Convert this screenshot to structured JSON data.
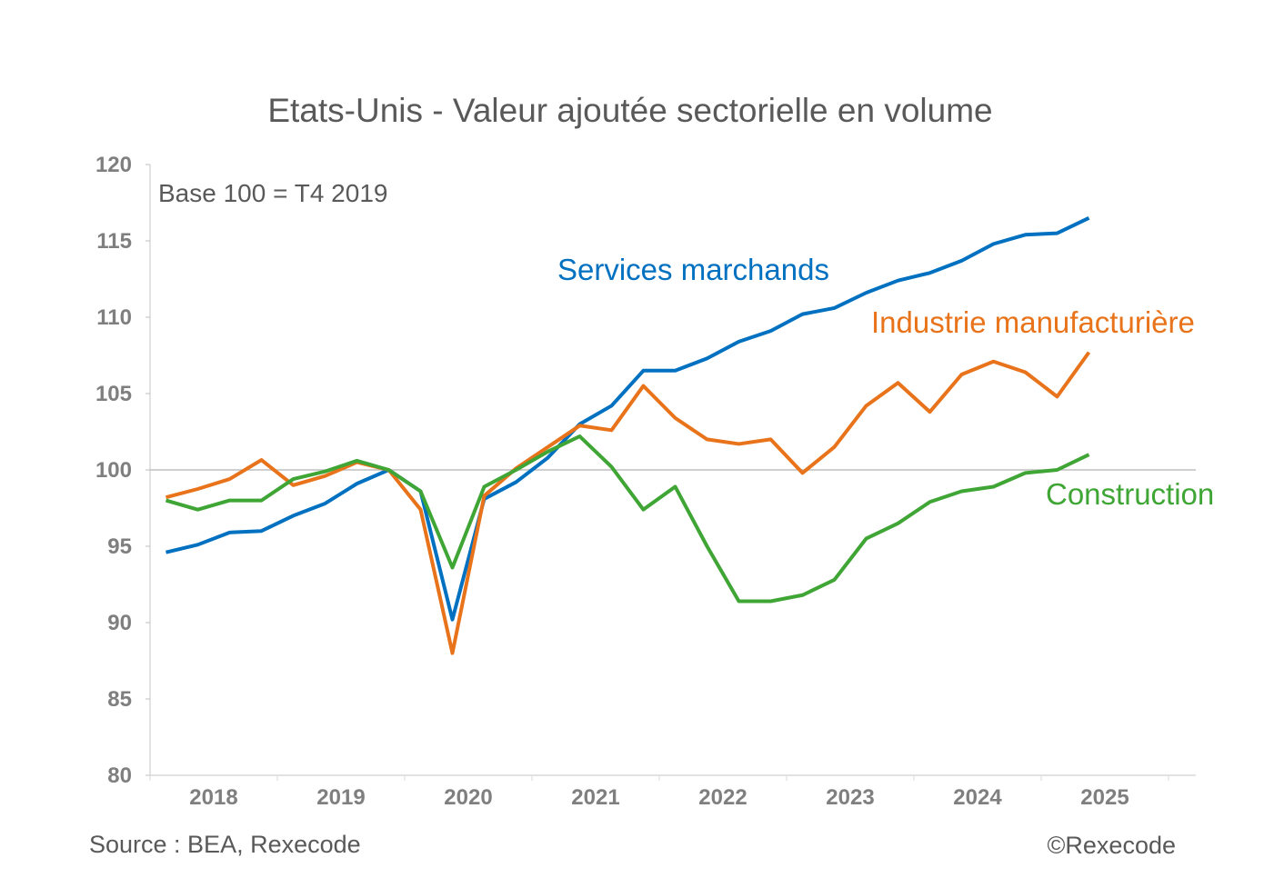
{
  "chart_data": {
    "type": "line",
    "title": "Etats-Unis - Valeur ajoutée sectorielle en volume",
    "note": "Base 100 = T4 2019",
    "source": "Source : BEA, Rexecode",
    "copyright": "©Rexecode",
    "xlabel": "",
    "ylabel": "",
    "ylim": [
      80,
      120
    ],
    "yticks": [
      80,
      85,
      90,
      95,
      100,
      105,
      110,
      115,
      120
    ],
    "xtick_labels": [
      "2018",
      "2019",
      "2020",
      "2021",
      "2022",
      "2023",
      "2024",
      "2025"
    ],
    "x": [
      "T1 2018",
      "T2 2018",
      "T3 2018",
      "T4 2018",
      "T1 2019",
      "T2 2019",
      "T3 2019",
      "T4 2019",
      "T1 2020",
      "T2 2020",
      "T3 2020",
      "T4 2020",
      "T1 2021",
      "T2 2021",
      "T3 2021",
      "T4 2021",
      "T1 2022",
      "T2 2022",
      "T3 2022",
      "T4 2022",
      "T1 2023",
      "T2 2023",
      "T3 2023",
      "T4 2023",
      "T1 2024",
      "T2 2024",
      "T3 2024",
      "T4 2024",
      "T1 2025",
      "T2 2025"
    ],
    "reference_line": 100,
    "grid": false,
    "legend": "inline labels",
    "series": [
      {
        "name": "Services marchands",
        "color": "#0070C0",
        "values": [
          94.6,
          95.1,
          95.9,
          96.0,
          97.0,
          97.8,
          99.1,
          100,
          98.6,
          90.2,
          98.1,
          99.2,
          100.8,
          103.0,
          104.2,
          106.5,
          106.5,
          107.3,
          108.4,
          109.1,
          110.2,
          110.6,
          111.6,
          112.4,
          112.9,
          113.7,
          114.8,
          115.4,
          115.5,
          116.5
        ]
      },
      {
        "name": "Industrie manufacturière",
        "color": "#E8731A",
        "values": [
          98.2,
          98.75,
          99.4,
          100.65,
          99.0,
          99.6,
          100.5,
          100,
          97.4,
          88.0,
          98.3,
          100.1,
          101.5,
          102.9,
          102.6,
          105.5,
          103.4,
          102.0,
          101.7,
          102.0,
          99.8,
          101.5,
          104.2,
          105.7,
          103.8,
          106.25,
          107.1,
          106.4,
          104.8,
          107.7
        ]
      },
      {
        "name": "Construction",
        "color": "#3FA535",
        "values": [
          98.0,
          97.4,
          98.0,
          98.0,
          99.4,
          99.9,
          100.6,
          100,
          98.6,
          93.6,
          98.9,
          100,
          101.2,
          102.2,
          100.2,
          97.4,
          98.9,
          95.0,
          91.4,
          91.4,
          91.8,
          92.8,
          95.5,
          96.5,
          97.9,
          98.6,
          98.9,
          99.8,
          100.0,
          101.0
        ]
      }
    ]
  }
}
